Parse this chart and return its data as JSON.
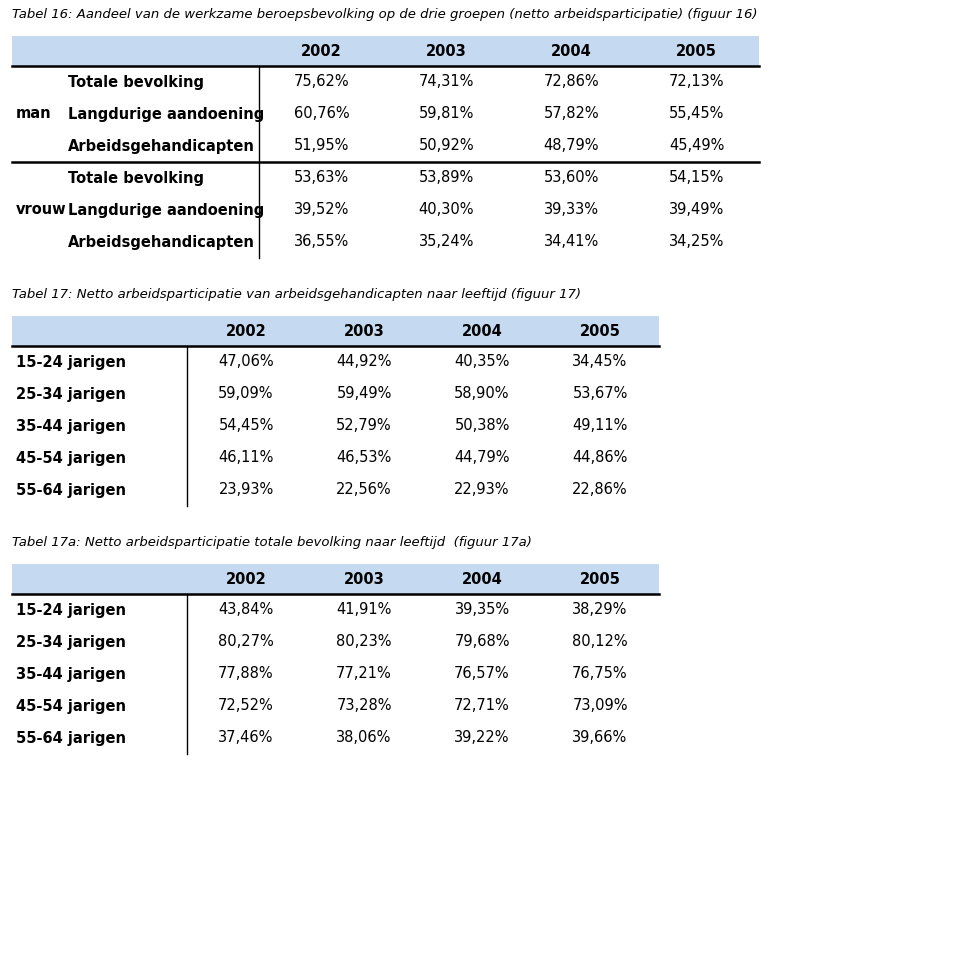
{
  "title16": "Tabel 16: Aandeel van de werkzame beroepsbevolking op de drie groepen (netto arbeidsparticipatie) (figuur 16)",
  "title17": "Tabel 17: Netto arbeidsparticipatie van arbeidsgehandicapten naar leeftijd (figuur 17)",
  "title17a": "Tabel 17a: Netto arbeidsparticipatie totale bevolking naar leeftijd  (figuur 17a)",
  "years": [
    "2002",
    "2003",
    "2004",
    "2005"
  ],
  "header_bg": "#C5D9F1",
  "table16": {
    "groups": [
      {
        "label": "man",
        "rows": [
          {
            "name": "Totale bevolking",
            "values": [
              "75,62%",
              "74,31%",
              "72,86%",
              "72,13%"
            ]
          },
          {
            "name": "Langdurige aandoening",
            "values": [
              "60,76%",
              "59,81%",
              "57,82%",
              "55,45%"
            ]
          },
          {
            "name": "Arbeidsgehandicapten",
            "values": [
              "51,95%",
              "50,92%",
              "48,79%",
              "45,49%"
            ]
          }
        ]
      },
      {
        "label": "vrouw",
        "rows": [
          {
            "name": "Totale bevolking",
            "values": [
              "53,63%",
              "53,89%",
              "53,60%",
              "54,15%"
            ]
          },
          {
            "name": "Langdurige aandoening",
            "values": [
              "39,52%",
              "40,30%",
              "39,33%",
              "39,49%"
            ]
          },
          {
            "name": "Arbeidsgehandicapten",
            "values": [
              "36,55%",
              "35,24%",
              "34,41%",
              "34,25%"
            ]
          }
        ]
      }
    ]
  },
  "table17": {
    "rows": [
      {
        "name": "15-24 jarigen",
        "values": [
          "47,06%",
          "44,92%",
          "40,35%",
          "34,45%"
        ]
      },
      {
        "name": "25-34 jarigen",
        "values": [
          "59,09%",
          "59,49%",
          "58,90%",
          "53,67%"
        ]
      },
      {
        "name": "35-44 jarigen",
        "values": [
          "54,45%",
          "52,79%",
          "50,38%",
          "49,11%"
        ]
      },
      {
        "name": "45-54 jarigen",
        "values": [
          "46,11%",
          "46,53%",
          "44,79%",
          "44,86%"
        ]
      },
      {
        "name": "55-64 jarigen",
        "values": [
          "23,93%",
          "22,56%",
          "22,93%",
          "22,86%"
        ]
      }
    ]
  },
  "table17a": {
    "rows": [
      {
        "name": "15-24 jarigen",
        "values": [
          "43,84%",
          "41,91%",
          "39,35%",
          "38,29%"
        ]
      },
      {
        "name": "25-34 jarigen",
        "values": [
          "80,27%",
          "80,23%",
          "79,68%",
          "80,12%"
        ]
      },
      {
        "name": "35-44 jarigen",
        "values": [
          "77,88%",
          "77,21%",
          "76,57%",
          "76,75%"
        ]
      },
      {
        "name": "45-54 jarigen",
        "values": [
          "72,52%",
          "73,28%",
          "72,71%",
          "73,09%"
        ]
      },
      {
        "name": "55-64 jarigen",
        "values": [
          "37,46%",
          "38,06%",
          "39,22%",
          "39,66%"
        ]
      }
    ]
  },
  "bg_color": "#ffffff"
}
